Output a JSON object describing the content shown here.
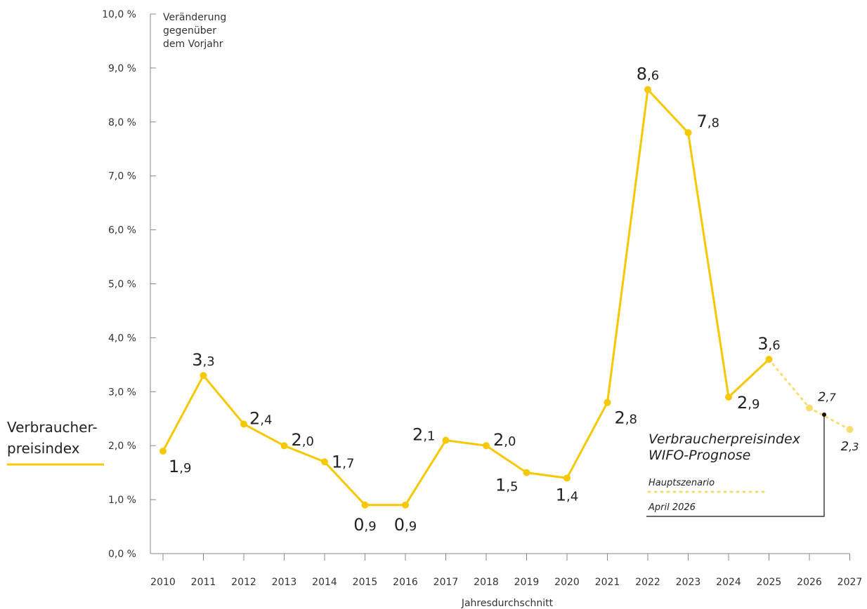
{
  "chart_data": {
    "type": "line",
    "x": [
      "2010",
      "2011",
      "2012",
      "2013",
      "2014",
      "2015",
      "2016",
      "2017",
      "2018",
      "2019",
      "2020",
      "2021",
      "2022",
      "2023",
      "2024",
      "2025",
      "2026",
      "2027"
    ],
    "series": [
      {
        "name": "Verbraucherpreisindex",
        "x": [
          "2010",
          "2011",
          "2012",
          "2013",
          "2014",
          "2015",
          "2016",
          "2017",
          "2018",
          "2019",
          "2020",
          "2021",
          "2022",
          "2023",
          "2024",
          "2025"
        ],
        "values": [
          1.9,
          3.3,
          2.4,
          2.0,
          1.7,
          0.9,
          0.9,
          2.1,
          2.0,
          1.5,
          1.4,
          2.8,
          8.6,
          7.8,
          2.9,
          3.6
        ],
        "labels": [
          [
            "1",
            ",9"
          ],
          [
            "3",
            ",3"
          ],
          [
            "2",
            ",4"
          ],
          [
            "2",
            ",0"
          ],
          [
            "1",
            ",7"
          ],
          [
            "0",
            ",9"
          ],
          [
            "0",
            ",9"
          ],
          [
            "2",
            ",1"
          ],
          [
            "2",
            ",0"
          ],
          [
            "1",
            ",5"
          ],
          [
            "1",
            ",4"
          ],
          [
            "2",
            ",8"
          ],
          [
            "8",
            ",6"
          ],
          [
            "7",
            ",8"
          ],
          [
            "2",
            ",9"
          ],
          [
            "3",
            ",6"
          ]
        ],
        "color": "#f5c800"
      },
      {
        "name": "Verbraucherpreisindex WIFO-Prognose",
        "x": [
          "2025",
          "2026",
          "2027"
        ],
        "values": [
          3.6,
          2.7,
          2.3
        ],
        "labels": [
          null,
          [
            "2",
            ",7"
          ],
          [
            "2",
            ",3"
          ]
        ],
        "color": "#f7dc6f",
        "style": "dotted"
      }
    ],
    "yticks": [
      "0,0 %",
      "1,0 %",
      "2,0 %",
      "3,0 %",
      "4,0 %",
      "5,0 %",
      "6,0 %",
      "7,0 %",
      "8,0 %",
      "9,0 %",
      "10,0 %"
    ],
    "ylim": [
      0,
      10
    ],
    "ylabel": [
      "Veränderung",
      "gegenüber",
      "dem Vorjahr"
    ],
    "xlabel": "Jahresdurchschnitt",
    "legend": {
      "main": [
        "Verbraucher-",
        "preisindex"
      ],
      "forecast_title": [
        "Verbraucherpreisindex",
        "WIFO-Prognose"
      ],
      "forecast_scenario": "Hauptszenario",
      "forecast_date": "April 2026"
    },
    "colors": {
      "main": "#f5c800",
      "forecast": "#f7dc6f",
      "axis": "#888888",
      "annotation": "#111111"
    }
  }
}
